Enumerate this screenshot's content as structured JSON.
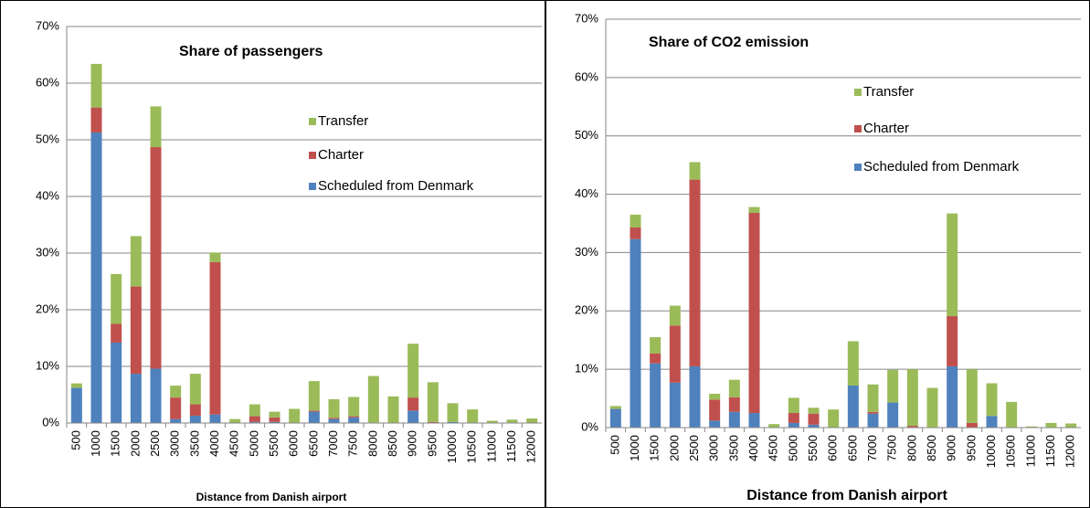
{
  "chart_data": [
    {
      "type": "bar",
      "stacked": true,
      "title": "Share of passengers",
      "x_label": "Distance from Danish airport",
      "categories": [
        "500",
        "1000",
        "1500",
        "2000",
        "2500",
        "3000",
        "3500",
        "4000",
        "4500",
        "5000",
        "5500",
        "6000",
        "6500",
        "7000",
        "7500",
        "8000",
        "8500",
        "9000",
        "9500",
        "10000",
        "10500",
        "11000",
        "11500",
        "12000"
      ],
      "series": [
        {
          "name": "Scheduled from Denmark",
          "color": "#4f81bd",
          "values": [
            6.2,
            51.3,
            14.2,
            8.7,
            9.6,
            0.7,
            1.3,
            1.5,
            0,
            0.2,
            0.2,
            0,
            2.0,
            0.7,
            1.0,
            0,
            0,
            2.2,
            0,
            0.2,
            0,
            0,
            0,
            0
          ]
        },
        {
          "name": "Charter",
          "color": "#c0504d",
          "values": [
            0,
            4.4,
            3.3,
            15.4,
            39.1,
            3.8,
            2.0,
            26.9,
            0,
            1.0,
            0.8,
            0,
            0.2,
            0.2,
            0.2,
            0.1,
            0,
            2.3,
            0.2,
            0,
            0,
            0,
            0,
            0
          ]
        },
        {
          "name": "Transfer",
          "color": "#9bbb59",
          "values": [
            0.8,
            7.7,
            8.8,
            8.9,
            7.2,
            2.1,
            5.4,
            1.7,
            0.7,
            2.1,
            1.0,
            2.5,
            5.2,
            3.3,
            3.4,
            8.2,
            4.7,
            9.5,
            7.0,
            3.3,
            2.4,
            0.4,
            0.6,
            0.8
          ]
        }
      ],
      "ylim": [
        0,
        70
      ],
      "yticks": [
        {
          "value": 0,
          "label": "0%"
        },
        {
          "value": 10,
          "label": "10%"
        },
        {
          "value": 20,
          "label": "20%"
        },
        {
          "value": 30,
          "label": "30%"
        },
        {
          "value": 40,
          "label": "40%"
        },
        {
          "value": 50,
          "label": "50%"
        },
        {
          "value": 60,
          "label": "60%"
        },
        {
          "value": 70,
          "label": "70%"
        }
      ],
      "grid": true
    },
    {
      "type": "bar",
      "stacked": true,
      "title": "Share of CO2 emission",
      "x_label": "Distance from Danish airport",
      "categories": [
        "500",
        "1000",
        "1500",
        "2000",
        "2500",
        "3000",
        "3500",
        "4000",
        "4500",
        "5000",
        "5500",
        "6000",
        "6500",
        "7000",
        "7500",
        "8000",
        "8500",
        "9000",
        "9500",
        "10000",
        "10500",
        "11000",
        "11500",
        "12000"
      ],
      "series": [
        {
          "name": "Scheduled from Denmark",
          "color": "#4f81bd",
          "values": [
            3.2,
            32.3,
            11.0,
            7.7,
            10.5,
            1.2,
            2.7,
            2.5,
            0,
            0.8,
            0.5,
            0,
            7.2,
            2.4,
            4.3,
            0,
            0,
            10.5,
            0,
            2.0,
            0,
            0,
            0,
            0
          ]
        },
        {
          "name": "Charter",
          "color": "#c0504d",
          "values": [
            0,
            2.0,
            1.7,
            9.8,
            32.0,
            3.6,
            2.5,
            34.3,
            0,
            1.7,
            1.9,
            0,
            0,
            0.3,
            0,
            0.3,
            0,
            8.6,
            0.8,
            0,
            0,
            0,
            0,
            0
          ]
        },
        {
          "name": "Transfer",
          "color": "#9bbb59",
          "values": [
            0.5,
            2.2,
            2.8,
            3.4,
            3.0,
            1.0,
            3.0,
            1.0,
            0.6,
            2.6,
            1.0,
            3.1,
            7.6,
            4.7,
            5.6,
            9.7,
            6.8,
            17.6,
            9.2,
            5.6,
            4.4,
            0.2,
            0.8,
            0.7
          ]
        }
      ],
      "ylim": [
        0,
        70
      ],
      "yticks": [
        {
          "value": 0,
          "label": "0%"
        },
        {
          "value": 10,
          "label": "10%"
        },
        {
          "value": 20,
          "label": "20%"
        },
        {
          "value": 30,
          "label": "30%"
        },
        {
          "value": 40,
          "label": "40%"
        },
        {
          "value": 50,
          "label": "50%"
        },
        {
          "value": 60,
          "label": "60%"
        },
        {
          "value": 70,
          "label": "70%"
        }
      ],
      "grid": true
    }
  ]
}
